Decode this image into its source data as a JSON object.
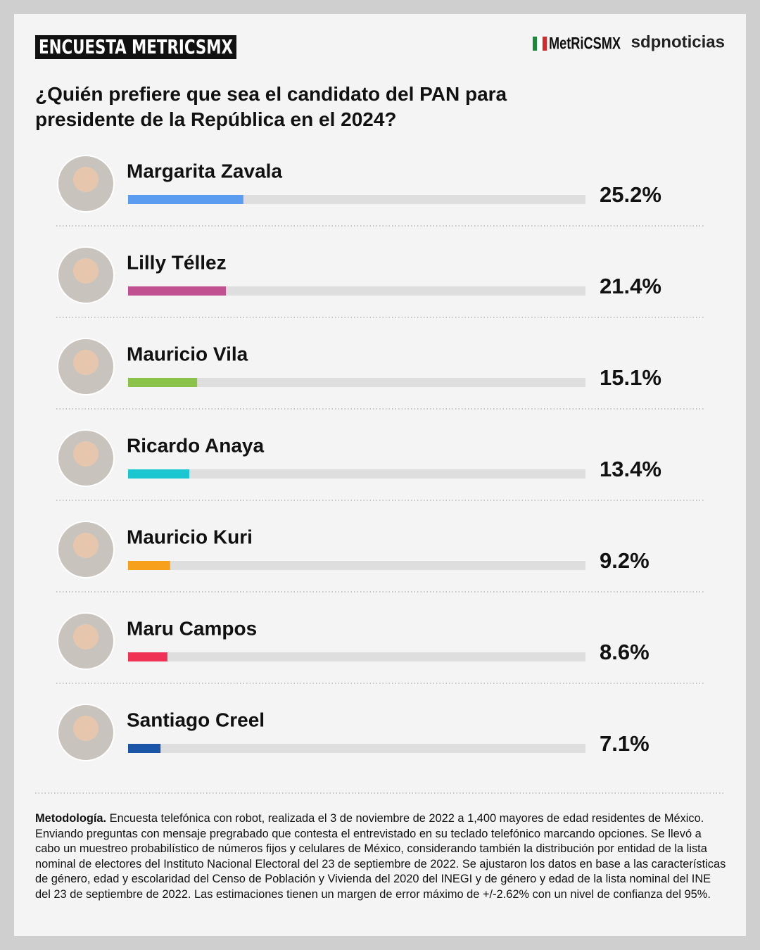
{
  "header": {
    "badge": "ENCUESTA METRICSMX",
    "logo": "MetRiCSMX",
    "partner": "sdpnoticias"
  },
  "chart_data": {
    "type": "bar",
    "orientation": "horizontal",
    "title": "¿Quién prefiere que sea el candidato del PAN para presidente de la República en el 2024?",
    "categories": [
      "Margarita Zavala",
      "Lilly Téllez",
      "Mauricio Vila",
      "Ricardo Anaya",
      "Mauricio Kuri",
      "Maru Campos",
      "Santiago Creel"
    ],
    "values": [
      25.2,
      21.4,
      15.1,
      13.4,
      9.2,
      8.6,
      7.1
    ],
    "value_labels": [
      "25.2%",
      "21.4%",
      "15.1%",
      "13.4%",
      "9.2%",
      "8.6%",
      "7.1%"
    ],
    "colors": [
      "#5b9bf0",
      "#c0508f",
      "#8bc34a",
      "#1cc6d0",
      "#f7a01c",
      "#ef3155",
      "#1a55a8"
    ],
    "xlim": [
      0,
      100
    ]
  },
  "footnote": {
    "label": "Metodología.",
    "text": "Encuesta telefónica con robot, realizada el 3 de noviembre de 2022 a 1,400 mayores de edad residentes de México. Enviando preguntas con mensaje pregrabado que contesta el entrevistado en su teclado telefónico marcando opciones. Se llevó a cabo un muestreo probabilístico de números fijos y celulares de México, considerando también la distribución por entidad de la lista nominal de electores del Instituto Nacional Electoral del 23 de septiembre de 2022. Se ajustaron los datos en base a las características de género, edad y escolaridad del Censo de Población y Vivienda del 2020 del INEGI y de género y edad de la lista nominal del INE del 23 de septiembre de 2022. Las estimaciones tienen un margen de error máximo de +/-2.62% con un nivel de confianza del 95%."
  }
}
